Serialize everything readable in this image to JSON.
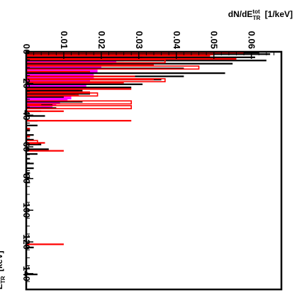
{
  "chart_data": {
    "type": "bar",
    "orientation": "rotated 90 degrees: energy runs down the page, dN/dE runs to the right",
    "x_axis": {
      "title": "E_TR^tot [keV]",
      "title_parts": {
        "base": "E",
        "sup": "tot",
        "sub": "TR",
        "unit": "[keV]"
      },
      "range": [
        0,
        150
      ],
      "ticks": [
        0,
        20,
        40,
        60,
        80,
        100,
        120,
        140
      ],
      "tick_labels": [
        "0",
        "20",
        "40",
        "60",
        "80",
        "100",
        "120",
        "140"
      ]
    },
    "y_axis": {
      "title": "dN/dE_TR^tot [1/keV]",
      "title_parts": {
        "base": "dN/dE",
        "sup": "tot",
        "sub": "TR",
        "unit": "[1/keV]"
      },
      "range": [
        0,
        0.068
      ],
      "ticks": [
        0,
        0.01,
        0.02,
        0.03,
        0.04,
        0.05,
        0.06
      ],
      "tick_labels": [
        "0",
        "0.01",
        "0.02",
        "0.03",
        "0.04",
        "0.05",
        "0.06"
      ]
    },
    "bin_width": 1,
    "series": [
      {
        "style": "filled",
        "color": "#ff00ff",
        "bins": [
          [
            0,
            0.04
          ],
          [
            1,
            0.038
          ],
          [
            2,
            0.035
          ],
          [
            3,
            0.031
          ],
          [
            4,
            0.028
          ],
          [
            5,
            0.026
          ],
          [
            6,
            0.024
          ],
          [
            7,
            0.023
          ],
          [
            8,
            0.021
          ],
          [
            9,
            0.02
          ],
          [
            10,
            0.02
          ],
          [
            11,
            0.019
          ],
          [
            12,
            0.019
          ],
          [
            13,
            0.018
          ],
          [
            14,
            0.018
          ],
          [
            15,
            0.018
          ],
          [
            16,
            0.018
          ],
          [
            17,
            0.017
          ],
          [
            18,
            0.017
          ],
          [
            19,
            0.017
          ],
          [
            20,
            0.016
          ],
          [
            21,
            0.016
          ],
          [
            22,
            0.016
          ],
          [
            23,
            0.015
          ],
          [
            24,
            0.014
          ],
          [
            25,
            0.014
          ],
          [
            26,
            0.013
          ],
          [
            27,
            0.013
          ],
          [
            28,
            0.012
          ],
          [
            29,
            0.012
          ],
          [
            30,
            0.011
          ],
          [
            31,
            0.01
          ],
          [
            32,
            0.009
          ],
          [
            33,
            0.008
          ],
          [
            34,
            0.007
          ],
          [
            35,
            0.006
          ]
        ]
      },
      {
        "style": "line",
        "color": "#000000",
        "bins": [
          [
            0,
            0.062
          ],
          [
            1,
            0.065
          ],
          [
            3,
            0.061
          ],
          [
            5,
            0.064
          ],
          [
            7,
            0.055
          ],
          [
            10,
            0.042
          ],
          [
            13,
            0.053
          ],
          [
            15,
            0.042
          ],
          [
            17,
            0.036
          ],
          [
            20,
            0.031
          ],
          [
            22,
            0.028
          ],
          [
            24,
            0.015
          ],
          [
            26,
            0.017
          ],
          [
            28,
            0.01
          ],
          [
            31,
            0.015
          ],
          [
            33,
            0.007
          ],
          [
            35,
            0.008
          ],
          [
            37,
            0.004
          ],
          [
            40,
            0.005
          ],
          [
            43,
            0.003
          ],
          [
            46,
            0.003
          ],
          [
            49,
            0.001
          ],
          [
            52,
            0.002
          ],
          [
            55,
            0.002
          ],
          [
            58,
            0.004
          ],
          [
            61,
            0.006
          ],
          [
            64,
            0.003
          ],
          [
            67,
            0.001
          ],
          [
            70,
            0.002
          ],
          [
            73,
            0.002
          ],
          [
            76,
            0.001
          ],
          [
            79,
            0.001
          ],
          [
            82,
            0.001
          ],
          [
            123,
            0.002
          ],
          [
            140,
            0.003
          ]
        ]
      },
      {
        "style": "filled",
        "color": "#ff0000",
        "bins": [
          [
            0,
            0.058
          ],
          [
            2,
            0.049
          ],
          [
            4,
            0.056
          ],
          [
            8,
            0.034
          ],
          [
            12,
            0.017
          ],
          [
            15,
            0.029
          ],
          [
            17,
            0.034
          ],
          [
            19,
            0.026
          ],
          [
            23,
            0.028
          ],
          [
            25,
            0.017
          ],
          [
            27,
            0.014
          ],
          [
            33,
            0.004
          ],
          [
            37,
            0.01
          ],
          [
            43,
            0.028
          ],
          [
            48,
            0.001
          ],
          [
            53,
            0.001
          ],
          [
            57,
            0.005
          ],
          [
            62,
            0.01
          ],
          [
            121,
            0.01
          ]
        ]
      },
      {
        "style": "open",
        "color": "#ff0000",
        "bins": [
          [
            0,
            0.05
          ],
          [
            5,
            0.037
          ],
          [
            9,
            0.046
          ],
          [
            17,
            0.037
          ],
          [
            26,
            0.019
          ],
          [
            31,
            0.028
          ],
          [
            34,
            0.028
          ],
          [
            56,
            0.003
          ]
        ]
      }
    ]
  }
}
